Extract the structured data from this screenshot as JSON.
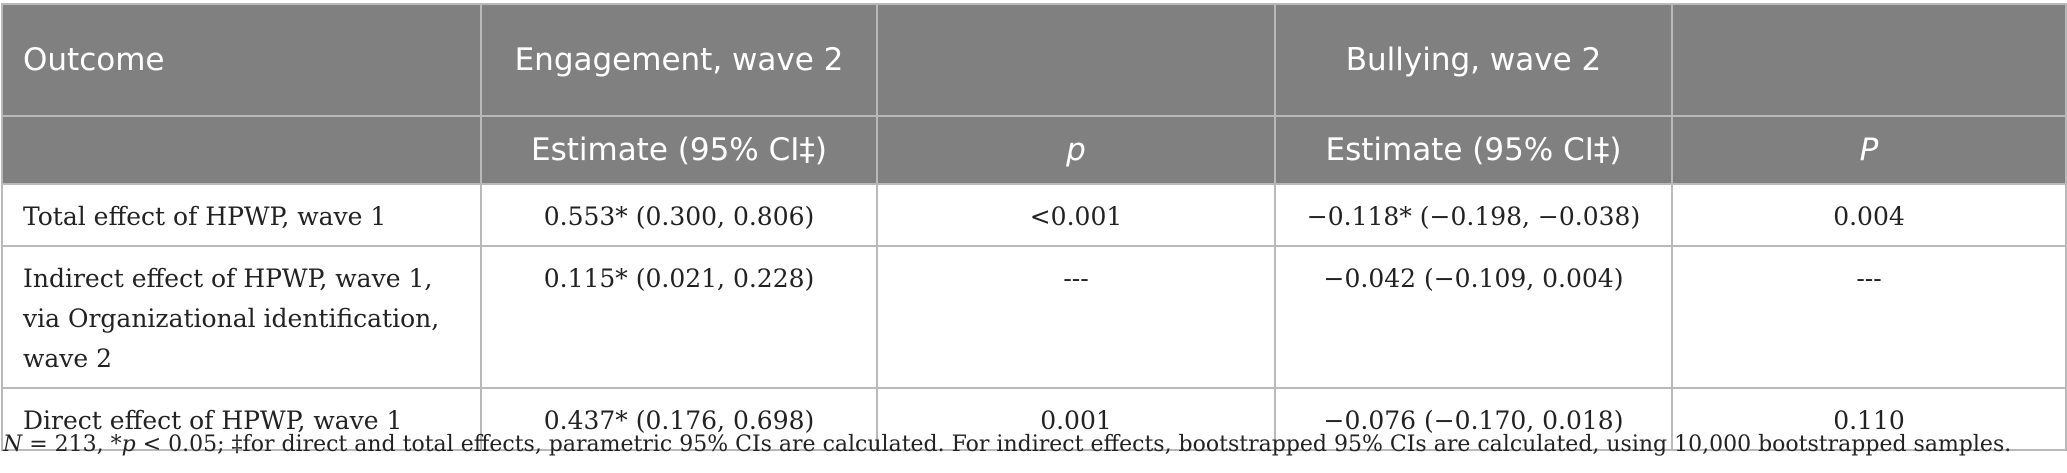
{
  "table": {
    "header_row1": {
      "outcome": "Outcome",
      "engagement": "Engagement, wave 2",
      "empty1": "",
      "bullying": "Bullying, wave 2",
      "empty2": ""
    },
    "header_row2": {
      "empty": "",
      "estimate1": "Estimate (95% CI‡)",
      "p1": "p",
      "estimate2": "Estimate (95% CI‡)",
      "p2": "P"
    },
    "rows": [
      {
        "outcome": "Total effect of HPWP, wave 1",
        "eng_estimate": "0.553* (0.300, 0.806)",
        "eng_p": "<0.001",
        "bul_estimate": "−0.118* (−0.198, −0.038)",
        "bul_p": "0.004"
      },
      {
        "outcome": "Indirect effect of HPWP, wave 1, via Organizational identification, wave 2",
        "eng_estimate": "0.115* (0.021, 0.228)",
        "eng_p": "---",
        "bul_estimate": "−0.042 (−0.109, 0.004)",
        "bul_p": "---"
      },
      {
        "outcome": "Direct effect of HPWP, wave 1",
        "eng_estimate": "0.437* (0.176, 0.698)",
        "eng_p": "0.001",
        "bul_estimate": "−0.076 (−0.170, 0.018)",
        "bul_p": "0.110"
      }
    ]
  },
  "footnote": {
    "n_label": "N",
    "n_value": " = 213, *",
    "p_label": "p",
    "rest": " < 0.05; ‡for direct and total effects, parametric 95% CIs are calculated. For indirect effects, bootstrapped 95% CIs are calculated, using 10,000 bootstrapped samples."
  }
}
